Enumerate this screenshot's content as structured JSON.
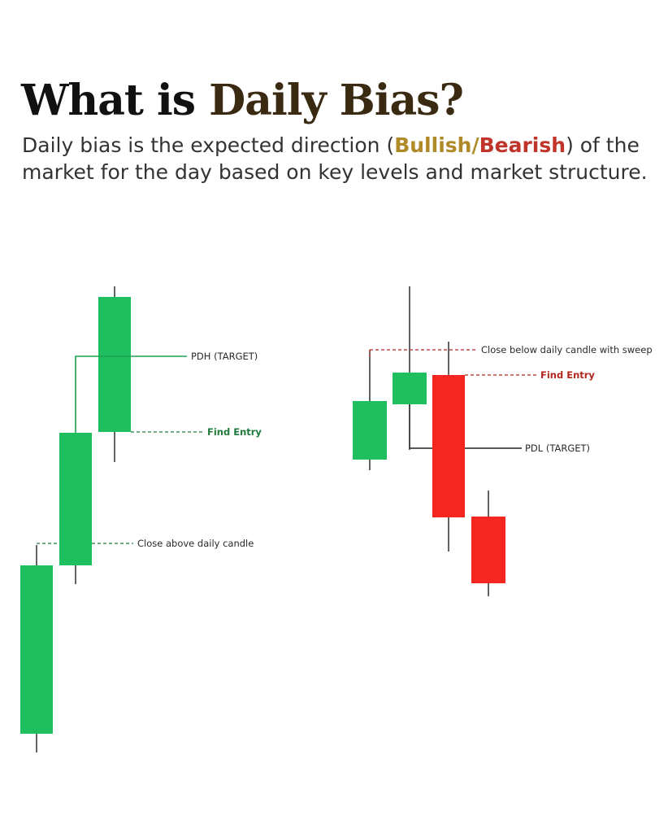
{
  "header": {
    "title_plain": "What is ",
    "title_accent": "Daily Bias?",
    "sub_prefix": "Daily bias is the expected direction (",
    "sub_bullish": "Bullish",
    "sub_slash": "/",
    "sub_bearish": "Bearish",
    "sub_suffix": ") of the market for the day based on key levels and market structure."
  },
  "bullish_setup": {
    "labels": {
      "target": "PDH (TARGET)",
      "entry": "Find Entry",
      "close": "Close above daily candle"
    }
  },
  "bearish_setup": {
    "labels": {
      "sweep": "Close below daily candle with sweep",
      "entry": "Find Entry",
      "target": "PDL (TARGET)"
    }
  },
  "colors": {
    "bull": "#1fbf60",
    "bear": "#f5261f",
    "bull_label": "#1f7a3c",
    "bear_label": "#b3261e",
    "neutral_label": "#2a2a2a"
  }
}
